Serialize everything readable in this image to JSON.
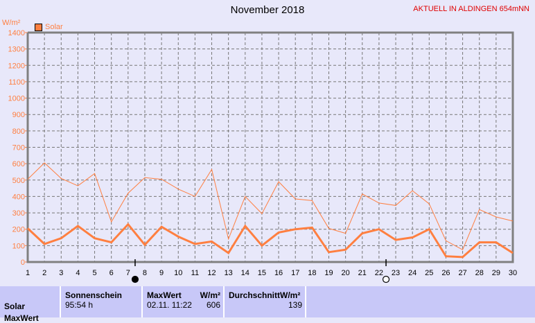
{
  "header": {
    "title": "November 2018",
    "station": "AKTUELL IN ALDINGEN 654mNN"
  },
  "chart_data": {
    "type": "line",
    "title": "November 2018",
    "ylabel": "W/m²",
    "ylim": [
      0,
      1400
    ],
    "yticks": [
      0,
      100,
      200,
      300,
      400,
      500,
      600,
      700,
      800,
      900,
      1000,
      1100,
      1200,
      1300,
      1400
    ],
    "x": [
      1,
      2,
      3,
      4,
      5,
      6,
      7,
      8,
      9,
      10,
      11,
      12,
      13,
      14,
      15,
      16,
      17,
      18,
      19,
      20,
      21,
      22,
      23,
      24,
      25,
      26,
      27,
      28,
      29,
      30
    ],
    "grid": true,
    "legend": {
      "position": "top-left",
      "entries": [
        "Solar"
      ]
    },
    "series": [
      {
        "name": "Solar",
        "style": "max (thin)",
        "values": [
          505,
          605,
          510,
          465,
          540,
          245,
          420,
          515,
          505,
          445,
          400,
          565,
          140,
          400,
          295,
          490,
          385,
          375,
          205,
          175,
          415,
          360,
          345,
          435,
          355,
          130,
          75,
          320,
          275,
          250
        ]
      },
      {
        "name": "Solar",
        "style": "mean (thick)",
        "values": [
          205,
          110,
          145,
          220,
          145,
          120,
          230,
          105,
          215,
          155,
          110,
          125,
          55,
          220,
          100,
          180,
          200,
          210,
          60,
          75,
          175,
          200,
          135,
          150,
          200,
          35,
          30,
          120,
          120,
          55
        ]
      }
    ],
    "moon_phases": [
      {
        "day": 8,
        "phase": "new-moon"
      },
      {
        "day": 23,
        "phase": "full-moon"
      }
    ],
    "color": "#ff7f40"
  },
  "table": {
    "row_label": "Solar",
    "row2_label": "MaxWert",
    "sunshine_header": "Sonnenschein",
    "sunshine_value": "95:54 h",
    "max_header": "MaxWert",
    "max_unit": "W/m²",
    "max_time": "02.11.  11:22",
    "max_value": "606",
    "avg_header": "DurchschnittW/m²",
    "avg_value": "139"
  }
}
